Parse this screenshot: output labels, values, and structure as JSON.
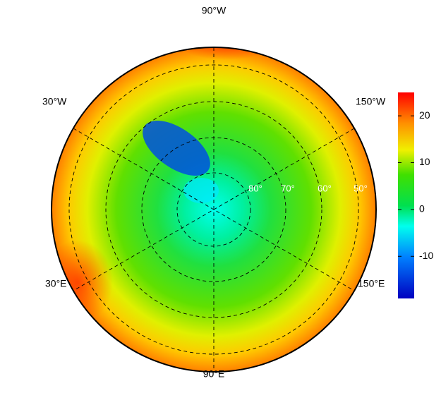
{
  "map": {
    "longitude_labels": [
      "90°W",
      "30°W",
      "150°W",
      "30°E",
      "150°E",
      "90°E"
    ],
    "latitude_labels": [
      "80°",
      "70°",
      "60°",
      "50°"
    ]
  },
  "colorbar": {
    "range": [
      -19,
      25
    ],
    "ticks": [
      -10,
      0,
      10,
      20
    ]
  }
}
